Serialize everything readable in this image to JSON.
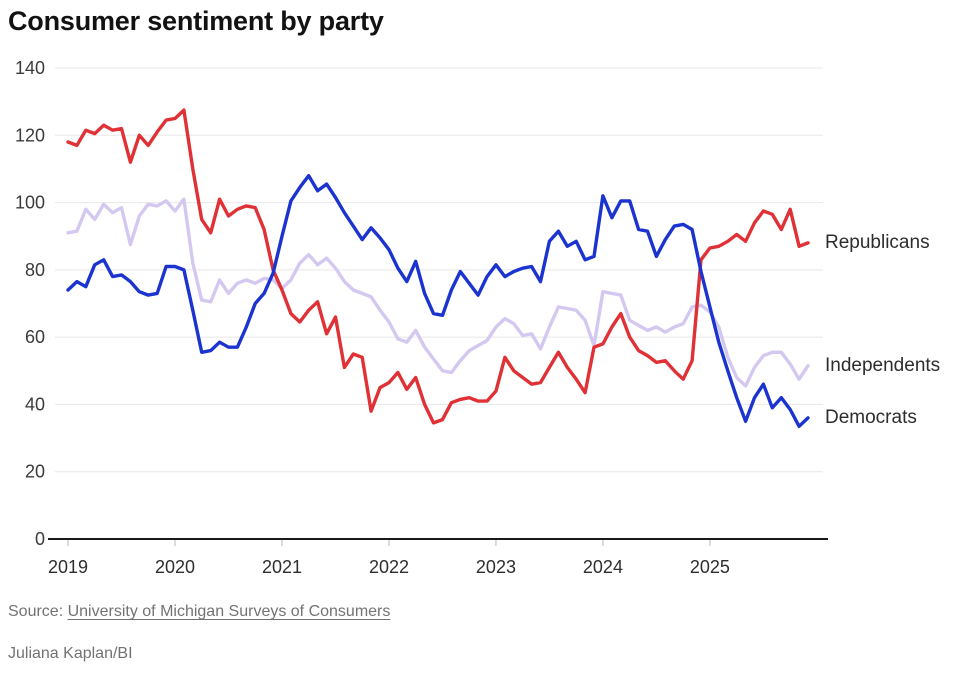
{
  "page": {
    "title": "Consumer sentiment by party",
    "source_prefix": "Source: ",
    "source_link": "University of Michigan Surveys of Consumers",
    "credit": "Juliana Kaplan/BI"
  },
  "chart_data": {
    "type": "line",
    "title": "Consumer sentiment by party",
    "x_unit": "month",
    "x_start": "2019-01",
    "x_end": "2025-12",
    "x_tick_labels": [
      "2019",
      "2020",
      "2021",
      "2022",
      "2023",
      "2024",
      "2025"
    ],
    "x_tick_month_indices": [
      0,
      12,
      24,
      36,
      48,
      60,
      72
    ],
    "y_ticks": [
      0,
      20,
      40,
      60,
      80,
      100,
      120,
      140
    ],
    "ylim": [
      0,
      140
    ],
    "grid": "horizontal",
    "legend_position": "right-end-labels",
    "axis_color": "#1a1a1a",
    "gridline_color": "#e8e8e8",
    "tick_color": "#cfcfcf",
    "tick_label_color": "#3b3b3b",
    "series": [
      {
        "name": "Republicans",
        "color": "#e03136",
        "values": [
          118,
          117,
          121.5,
          120.5,
          123,
          121.5,
          122,
          112,
          120,
          117,
          121,
          124.5,
          125,
          127.5,
          110,
          95,
          91,
          101,
          96,
          98,
          99,
          98.5,
          92,
          80,
          74,
          67,
          64.5,
          68,
          70.5,
          61,
          66,
          51,
          55,
          54,
          38,
          45,
          46.5,
          49.5,
          44.5,
          48,
          40,
          34.5,
          35.5,
          40.5,
          41.5,
          42,
          41,
          41,
          44,
          54,
          50,
          48,
          46,
          46.5,
          51,
          55.5,
          51,
          47.5,
          43.5,
          57,
          58,
          63,
          67,
          60,
          56,
          54.5,
          52.5,
          53,
          50,
          47.5,
          53,
          83,
          86.5,
          87,
          88.5,
          90.5,
          88.5,
          94,
          97.5,
          96.5,
          92,
          98,
          87,
          88
        ]
      },
      {
        "name": "Independents",
        "color": "#d4c8f1",
        "values": [
          91,
          91.5,
          98,
          95,
          99.5,
          97,
          98.5,
          87.5,
          96,
          99.5,
          99,
          100.5,
          97.5,
          101,
          82,
          71,
          70.5,
          77,
          73,
          76,
          77,
          76,
          77.5,
          77,
          74.5,
          77,
          82,
          84.5,
          81.5,
          83.5,
          80.5,
          76.5,
          74,
          73,
          72,
          68,
          64.5,
          59.5,
          58.5,
          62,
          57,
          53.5,
          50,
          49.5,
          53,
          56,
          57.5,
          59,
          63,
          65.5,
          64,
          60.5,
          61,
          56.5,
          63,
          69,
          68.5,
          68,
          65,
          57.5,
          73.5,
          73,
          72.5,
          65,
          63.5,
          62,
          63,
          61.5,
          63,
          64,
          69,
          69.5,
          67.5,
          63,
          54,
          48,
          45.5,
          51,
          54.5,
          55.5,
          55.5,
          52,
          47.5,
          51.5
        ]
      },
      {
        "name": "Democrats",
        "color": "#1b34d0",
        "values": [
          74,
          76.5,
          75,
          81.5,
          83,
          78,
          78.5,
          76.5,
          73.5,
          72.5,
          73,
          81,
          81,
          80,
          68,
          55.5,
          56,
          58.5,
          57,
          57,
          63,
          70,
          73,
          79,
          90,
          100.5,
          104.5,
          108,
          103.5,
          105.5,
          101.5,
          97,
          93,
          89,
          92.5,
          89.5,
          86,
          80.5,
          76.5,
          82.5,
          73,
          67,
          66.5,
          74,
          79.5,
          76,
          72.5,
          78,
          81.5,
          78,
          79.5,
          80.5,
          81,
          76.5,
          88.5,
          91.5,
          87,
          88.5,
          83,
          84,
          102,
          95.5,
          100.5,
          100.5,
          92,
          91.5,
          84,
          89,
          93,
          93.5,
          92,
          79.5,
          69,
          58.5,
          50,
          42,
          35,
          42,
          46,
          39,
          42,
          38.5,
          33.5,
          36
        ]
      }
    ],
    "draw_order": [
      1,
      0,
      2
    ]
  }
}
